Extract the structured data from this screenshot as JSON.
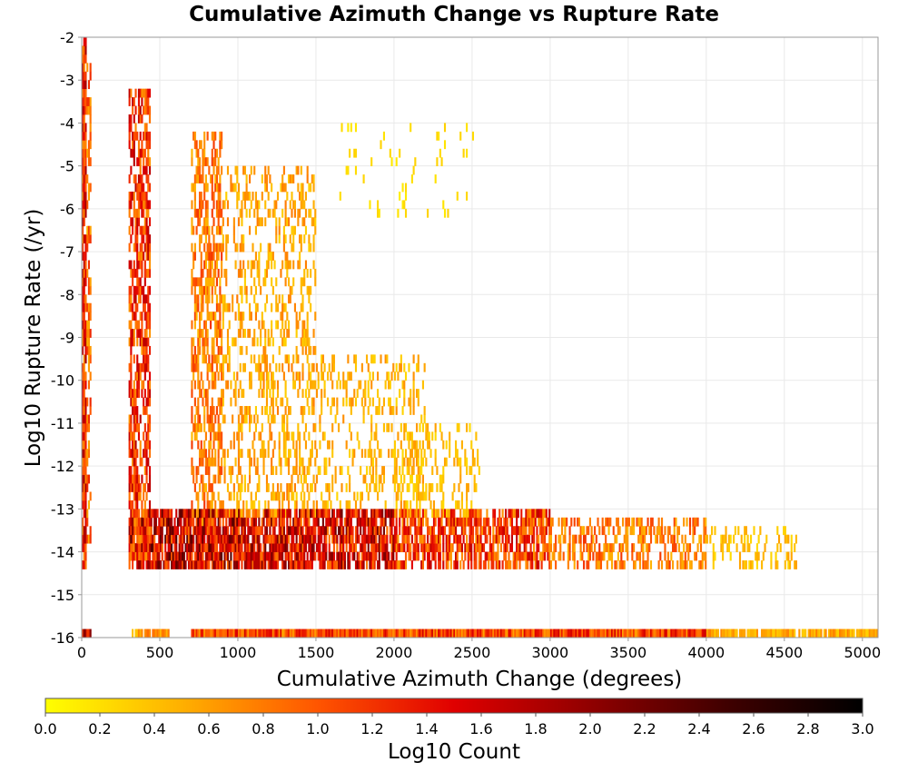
{
  "chart_data": {
    "type": "heatmap",
    "title": "Cumulative Azimuth Change vs Rupture Rate",
    "xlabel": "Cumulative Azimuth Change (degrees)",
    "ylabel": "Log10 Rupture Rate (/yr)",
    "xlim": [
      0,
      5100
    ],
    "ylim": [
      -16,
      -2
    ],
    "x_ticks": [
      0,
      500,
      1000,
      1500,
      2000,
      2500,
      3000,
      3500,
      4000,
      4500,
      5000
    ],
    "y_ticks": [
      -2,
      -3,
      -4,
      -5,
      -6,
      -7,
      -8,
      -9,
      -10,
      -11,
      -12,
      -13,
      -14,
      -15,
      -16
    ],
    "grid": true,
    "colorbar": {
      "label": "Log10 Count",
      "range": [
        0.0,
        3.0
      ],
      "ticks": [
        "0.0",
        "0.2",
        "0.4",
        "0.6",
        "0.8",
        "1.0",
        "1.2",
        "1.4",
        "1.6",
        "1.8",
        "2.0",
        "2.2",
        "2.4",
        "2.6",
        "2.8",
        "3.0"
      ],
      "colors": [
        "#ffff00",
        "#ffb000",
        "#ff5500",
        "#e00000",
        "#900000",
        "#400000",
        "#000000"
      ],
      "placement": "bottom"
    },
    "bin_size": {
      "x": 10,
      "y": 0.2
    },
    "clusters": [
      {
        "x0": 0,
        "x1": 30,
        "y0": -14.4,
        "y1": -2.1,
        "density": 0.85,
        "peak": 1.9
      },
      {
        "x0": 30,
        "x1": 60,
        "y0": -13.8,
        "y1": -2.6,
        "density": 0.55,
        "peak": 1.3
      },
      {
        "x0": 300,
        "x1": 440,
        "y0": -14.2,
        "y1": -3.3,
        "density": 0.6,
        "peak": 1.8
      },
      {
        "x0": 700,
        "x1": 900,
        "y0": -13.4,
        "y1": -4.3,
        "density": 0.5,
        "peak": 1.2
      },
      {
        "x0": 900,
        "x1": 1500,
        "y0": -13.2,
        "y1": -5.0,
        "density": 0.3,
        "peak": 0.8
      },
      {
        "x0": 1500,
        "x1": 2200,
        "y0": -13.0,
        "y1": -9.5,
        "density": 0.25,
        "peak": 0.7
      },
      {
        "x0": 1600,
        "x1": 2600,
        "y0": -6.2,
        "y1": -4.0,
        "density": 0.04,
        "peak": 0.3
      },
      {
        "x0": 2000,
        "x1": 2550,
        "y0": -13.2,
        "y1": -11.0,
        "density": 0.25,
        "peak": 0.6
      },
      {
        "x0": 300,
        "x1": 1000,
        "y0": -14.4,
        "y1": -13.0,
        "density": 0.85,
        "peak": 2.4
      },
      {
        "x0": 1000,
        "x1": 2000,
        "y0": -14.4,
        "y1": -13.0,
        "density": 0.8,
        "peak": 2.2
      },
      {
        "x0": 2000,
        "x1": 3000,
        "y0": -14.4,
        "y1": -13.0,
        "density": 0.7,
        "peak": 1.7
      },
      {
        "x0": 3000,
        "x1": 4000,
        "y0": -14.4,
        "y1": -13.2,
        "density": 0.45,
        "peak": 1.2
      },
      {
        "x0": 4000,
        "x1": 4600,
        "y0": -14.4,
        "y1": -13.4,
        "density": 0.3,
        "peak": 0.6
      },
      {
        "x0": 0,
        "x1": 60,
        "y0": -16.0,
        "y1": -15.8,
        "density": 1.0,
        "peak": 2.4
      },
      {
        "x0": 310,
        "x1": 560,
        "y0": -16.0,
        "y1": -15.8,
        "density": 0.9,
        "peak": 1.0
      },
      {
        "x0": 700,
        "x1": 4000,
        "y0": -16.0,
        "y1": -15.8,
        "density": 1.0,
        "peak": 1.6
      },
      {
        "x0": 4000,
        "x1": 5100,
        "y0": -16.0,
        "y1": -15.8,
        "density": 0.9,
        "peak": 0.8
      }
    ]
  }
}
